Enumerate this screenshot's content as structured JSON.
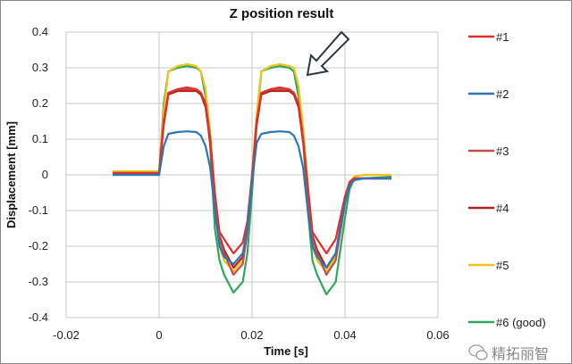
{
  "chart_data": {
    "type": "line",
    "title": "Z position result",
    "xlabel": "Time [s]",
    "ylabel": "Displacement [mm]",
    "xlim": [
      -0.02,
      0.06
    ],
    "ylim": [
      -0.4,
      0.4
    ],
    "xticks": [
      "-0.02",
      "0",
      "0.02",
      "0.04",
      "0.06"
    ],
    "xtick_values": [
      -0.02,
      0,
      0.02,
      0.04,
      0.06
    ],
    "yticks": [
      "0.4",
      "0.3",
      "0.2",
      "0.1",
      "0",
      "-0.1",
      "-0.2",
      "-0.3",
      "-0.4"
    ],
    "ytick_values": [
      0.4,
      0.3,
      0.2,
      0.1,
      0,
      -0.1,
      -0.2,
      -0.3,
      -0.4
    ],
    "grid": true,
    "legend_position": "right",
    "annotation": "arrow pointing at #5 plateau",
    "x": [
      -0.01,
      0,
      0.001,
      0.002,
      0.004,
      0.006,
      0.008,
      0.009,
      0.01,
      0.011,
      0.012,
      0.013,
      0.014,
      0.016,
      0.018,
      0.019,
      0.02,
      0.021,
      0.022,
      0.024,
      0.026,
      0.028,
      0.029,
      0.03,
      0.031,
      0.032,
      0.033,
      0.034,
      0.036,
      0.038,
      0.04,
      0.041,
      0.042,
      0.044,
      0.05
    ],
    "series": [
      {
        "name": "#1",
        "color": "#e0302a",
        "values": [
          0.005,
          0.005,
          0.15,
          0.23,
          0.24,
          0.245,
          0.24,
          0.23,
          0.2,
          0.1,
          -0.05,
          -0.16,
          -0.18,
          -0.22,
          -0.19,
          -0.13,
          0.0,
          0.15,
          0.23,
          0.24,
          0.245,
          0.24,
          0.23,
          0.2,
          0.1,
          -0.03,
          -0.16,
          -0.18,
          -0.22,
          -0.18,
          -0.06,
          -0.02,
          -0.01,
          -0.01,
          -0.01
        ]
      },
      {
        "name": "#2",
        "color": "#2e75b6",
        "values": [
          0,
          0,
          0.08,
          0.115,
          0.12,
          0.122,
          0.12,
          0.11,
          0.08,
          0.02,
          -0.1,
          -0.2,
          -0.23,
          -0.25,
          -0.22,
          -0.15,
          -0.02,
          0.09,
          0.115,
          0.12,
          0.122,
          0.12,
          0.11,
          0.08,
          0.02,
          -0.1,
          -0.2,
          -0.23,
          -0.26,
          -0.22,
          -0.08,
          -0.03,
          -0.015,
          -0.01,
          -0.01
        ]
      },
      {
        "name": "#3",
        "color": "#c0504d",
        "values": [
          0.005,
          0.005,
          0.15,
          0.23,
          0.24,
          0.24,
          0.24,
          0.23,
          0.2,
          0.1,
          -0.06,
          -0.18,
          -0.22,
          -0.28,
          -0.25,
          -0.16,
          -0.01,
          0.15,
          0.23,
          0.24,
          0.24,
          0.24,
          0.23,
          0.2,
          0.1,
          -0.04,
          -0.18,
          -0.22,
          -0.28,
          -0.24,
          -0.08,
          -0.02,
          -0.01,
          -0.01,
          -0.01
        ]
      },
      {
        "name": "#4",
        "color": "#b22222",
        "values": [
          0.005,
          0.005,
          0.14,
          0.225,
          0.235,
          0.235,
          0.235,
          0.225,
          0.19,
          0.09,
          -0.06,
          -0.17,
          -0.21,
          -0.26,
          -0.23,
          -0.15,
          -0.01,
          0.14,
          0.225,
          0.235,
          0.235,
          0.235,
          0.225,
          0.19,
          0.09,
          -0.04,
          -0.17,
          -0.21,
          -0.26,
          -0.22,
          -0.07,
          -0.02,
          -0.01,
          -0.01,
          -0.01
        ]
      },
      {
        "name": "#5",
        "color": "#f0c419",
        "values": [
          0.01,
          0.01,
          0.18,
          0.29,
          0.305,
          0.31,
          0.305,
          0.29,
          0.24,
          0.12,
          -0.05,
          -0.2,
          -0.24,
          -0.27,
          -0.24,
          -0.16,
          0.0,
          0.17,
          0.29,
          0.305,
          0.31,
          0.305,
          0.3,
          0.25,
          0.13,
          -0.03,
          -0.2,
          -0.24,
          -0.27,
          -0.23,
          -0.08,
          -0.02,
          -0.005,
          0.0,
          0.0
        ]
      },
      {
        "name": "#6 (good)",
        "color": "#2ea85a",
        "values": [
          0.0,
          0.0,
          0.2,
          0.29,
          0.3,
          0.305,
          0.3,
          0.29,
          0.22,
          0.08,
          -0.15,
          -0.24,
          -0.28,
          -0.33,
          -0.3,
          -0.22,
          -0.05,
          0.15,
          0.29,
          0.3,
          0.305,
          0.3,
          0.29,
          0.22,
          0.1,
          -0.1,
          -0.24,
          -0.28,
          -0.335,
          -0.3,
          -0.12,
          -0.04,
          -0.01,
          -0.01,
          -0.005
        ]
      }
    ]
  },
  "watermark": "精拓丽智"
}
